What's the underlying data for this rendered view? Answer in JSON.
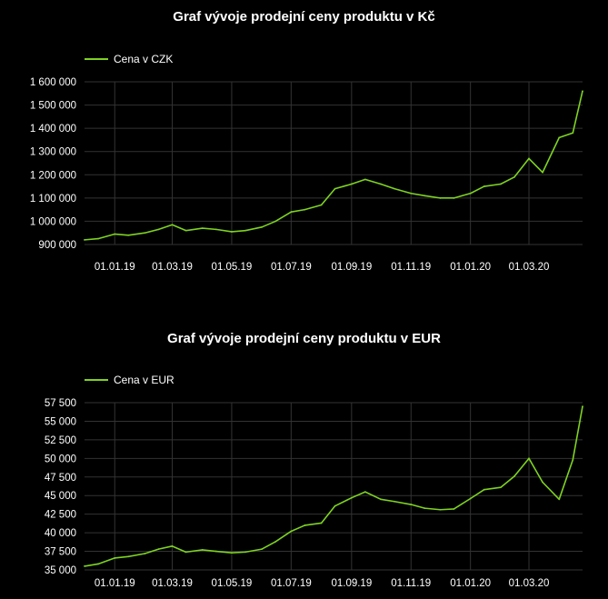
{
  "colors": {
    "line": "#7ed321",
    "grid": "#333333",
    "background": "#000000",
    "text": "#ffffff"
  },
  "chart_data": [
    {
      "type": "line",
      "title": "Graf vývoje prodejní ceny produktu v Kč",
      "xlabel": "",
      "ylabel": "",
      "legend_position": "top-left",
      "grid": true,
      "x_tick_labels": [
        "01.01.19",
        "01.03.19",
        "01.05.19",
        "01.07.19",
        "01.09.19",
        "01.11.19",
        "01.01.20",
        "01.03.20"
      ],
      "y_tick_labels": [
        "900 000",
        "1 000 000",
        "1 100 000",
        "1 200 000",
        "1 300 000",
        "1 400 000",
        "1 500 000",
        "1 600 000"
      ],
      "ylim": [
        900000,
        1600000
      ],
      "x": [
        "2018-12-01",
        "2018-12-15",
        "2019-01-01",
        "2019-01-15",
        "2019-02-01",
        "2019-02-15",
        "2019-03-01",
        "2019-03-15",
        "2019-04-01",
        "2019-04-15",
        "2019-05-01",
        "2019-05-15",
        "2019-06-01",
        "2019-06-15",
        "2019-07-01",
        "2019-07-15",
        "2019-08-01",
        "2019-08-15",
        "2019-09-01",
        "2019-09-15",
        "2019-10-01",
        "2019-10-15",
        "2019-11-01",
        "2019-11-15",
        "2019-12-01",
        "2019-12-15",
        "2020-01-01",
        "2020-01-15",
        "2020-02-01",
        "2020-02-15",
        "2020-03-01",
        "2020-03-15",
        "2020-04-01",
        "2020-04-15",
        "2020-04-25"
      ],
      "series": [
        {
          "name": "Cena v CZK",
          "values": [
            920000,
            925000,
            945000,
            940000,
            950000,
            965000,
            985000,
            960000,
            970000,
            965000,
            955000,
            960000,
            975000,
            1000000,
            1040000,
            1050000,
            1070000,
            1140000,
            1160000,
            1180000,
            1160000,
            1140000,
            1120000,
            1110000,
            1100000,
            1100000,
            1120000,
            1150000,
            1160000,
            1190000,
            1270000,
            1210000,
            1360000,
            1380000,
            1560000
          ]
        }
      ]
    },
    {
      "type": "line",
      "title": "Graf vývoje prodejní ceny produktu v EUR",
      "xlabel": "",
      "ylabel": "",
      "legend_position": "top-left",
      "grid": true,
      "x_tick_labels": [
        "01.01.19",
        "01.03.19",
        "01.05.19",
        "01.07.19",
        "01.09.19",
        "01.11.19",
        "01.01.20",
        "01.03.20"
      ],
      "y_tick_labels": [
        "35 000",
        "37 500",
        "40 000",
        "42 500",
        "45 000",
        "47 500",
        "50 000",
        "52 500",
        "55 000",
        "57 500"
      ],
      "ylim": [
        35000,
        57500
      ],
      "x": [
        "2018-12-01",
        "2018-12-15",
        "2019-01-01",
        "2019-01-15",
        "2019-02-01",
        "2019-02-15",
        "2019-03-01",
        "2019-03-15",
        "2019-04-01",
        "2019-04-15",
        "2019-05-01",
        "2019-05-15",
        "2019-06-01",
        "2019-06-15",
        "2019-07-01",
        "2019-07-15",
        "2019-08-01",
        "2019-08-15",
        "2019-09-01",
        "2019-09-15",
        "2019-10-01",
        "2019-10-15",
        "2019-11-01",
        "2019-11-15",
        "2019-12-01",
        "2019-12-15",
        "2020-01-01",
        "2020-01-15",
        "2020-02-01",
        "2020-02-15",
        "2020-03-01",
        "2020-03-15",
        "2020-04-01",
        "2020-04-15",
        "2020-04-25"
      ],
      "series": [
        {
          "name": "Cena v EUR",
          "values": [
            35500,
            35800,
            36600,
            36800,
            37200,
            37800,
            38200,
            37400,
            37700,
            37500,
            37300,
            37400,
            37800,
            38800,
            40200,
            41000,
            41300,
            43600,
            44700,
            45500,
            44500,
            44200,
            43800,
            43300,
            43100,
            43200,
            44600,
            45800,
            46100,
            47600,
            50000,
            46800,
            44500,
            49800,
            57000
          ]
        }
      ]
    }
  ]
}
